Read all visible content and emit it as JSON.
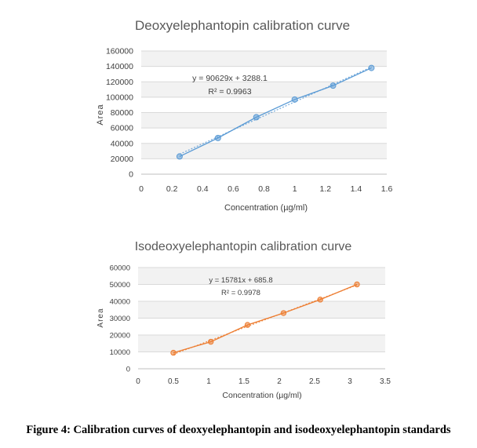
{
  "figure": {
    "caption": "Figure 4: Calibration curves of deoxyelephantopin and isodeoxyelephantopin standards"
  },
  "chart_data": [
    {
      "type": "scatter",
      "title": "Deoxyelephantopin calibration curve",
      "xlabel": "Concentration (µg/ml)",
      "ylabel": "Area",
      "xlim": [
        0,
        1.6
      ],
      "ylim": [
        0,
        160000
      ],
      "x_ticks": [
        "0",
        "0.2",
        "0.4",
        "0.6",
        "0.8",
        "1",
        "1.2",
        "1.4",
        "1.6"
      ],
      "y_ticks": [
        "0",
        "20000",
        "40000",
        "60000",
        "80000",
        "100000",
        "120000",
        "140000",
        "160000"
      ],
      "grid": true,
      "color": "#5b9bd5",
      "trendline": {
        "slope": 90629,
        "intercept": 3288.1
      },
      "equation": "y = 90629x + 3288.1",
      "r2": "R² = 0.9963",
      "series": [
        {
          "x": [
            0.25,
            0.5,
            0.75,
            1.0,
            1.25,
            1.5
          ],
          "y": [
            23000,
            47000,
            74000,
            97000,
            115000,
            138000
          ]
        }
      ]
    },
    {
      "type": "scatter",
      "title": "Isodeoxyelephantopin calibration curve",
      "xlabel": "Concentration (µg/ml)",
      "ylabel": "Area",
      "xlim": [
        0,
        3.5
      ],
      "ylim": [
        0,
        60000
      ],
      "x_ticks": [
        "0",
        "0.5",
        "1",
        "1.5",
        "2",
        "2.5",
        "3",
        "3.5"
      ],
      "y_ticks": [
        "0",
        "10000",
        "20000",
        "30000",
        "40000",
        "50000",
        "60000"
      ],
      "grid": true,
      "color": "#ed7d31",
      "trendline": {
        "slope": 15781,
        "intercept": 685.8
      },
      "equation": "y = 15781x + 685.8",
      "r2": "R² = 0.9978",
      "series": [
        {
          "x": [
            0.5,
            1.03,
            1.55,
            2.06,
            2.58,
            3.1
          ],
          "y": [
            9500,
            16000,
            26000,
            33000,
            41000,
            50000
          ]
        }
      ]
    }
  ]
}
